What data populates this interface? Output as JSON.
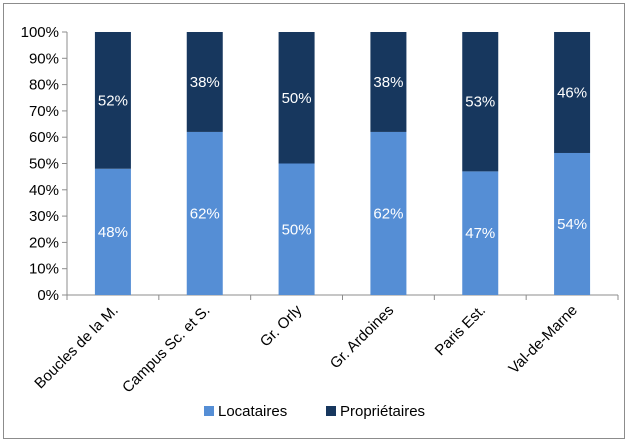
{
  "chart_data": {
    "type": "bar",
    "stacked": true,
    "normalized": true,
    "categories": [
      "Boucles de la M.",
      "Campus Sc. et S.",
      "Gr. Orly",
      "Gr. Ardoines",
      "Paris Est.",
      "Val-de-Marne"
    ],
    "series": [
      {
        "name": "Locataires",
        "color": "#558ed5",
        "values": [
          48,
          62,
          50,
          62,
          47,
          54
        ]
      },
      {
        "name": "Propriétaires",
        "color": "#17375e",
        "values": [
          52,
          38,
          50,
          38,
          53,
          46
        ]
      }
    ],
    "y_ticks": [
      "0%",
      "10%",
      "20%",
      "30%",
      "40%",
      "50%",
      "60%",
      "70%",
      "80%",
      "90%",
      "100%"
    ],
    "ylim": [
      0,
      100
    ],
    "grid": false,
    "legend_position": "bottom",
    "title": "",
    "xlabel": "",
    "ylabel": ""
  }
}
